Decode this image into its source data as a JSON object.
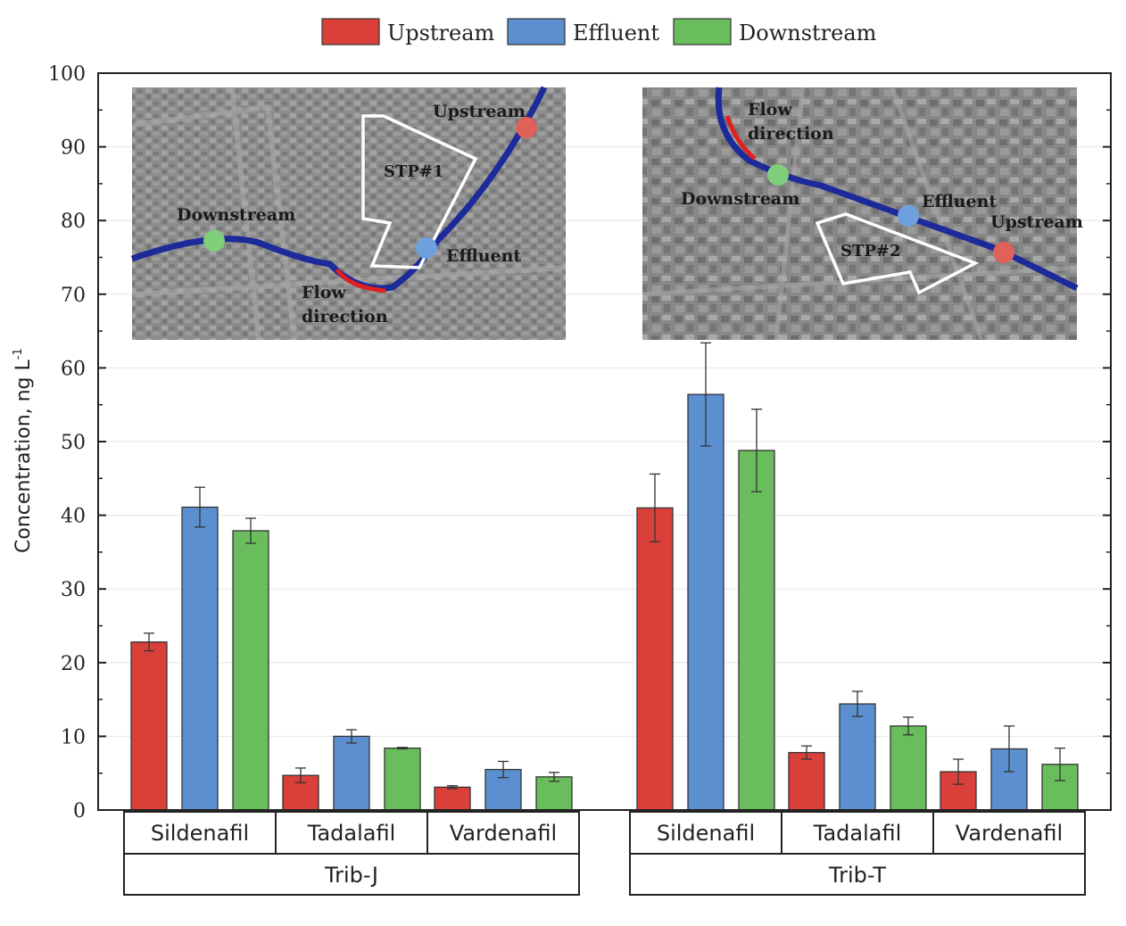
{
  "chart_data": {
    "type": "bar",
    "ylabel": "Concentration, ng L",
    "ylabel_sup": "-1",
    "ylim": [
      0,
      100
    ],
    "yticks": [
      0,
      10,
      20,
      30,
      40,
      50,
      60,
      70,
      80,
      90,
      100
    ],
    "legend": {
      "position": "top-center",
      "entries": [
        {
          "name": "Upstream",
          "color": "#d9403a"
        },
        {
          "name": "Effluent",
          "color": "#5b8fd0"
        },
        {
          "name": "Downstream",
          "color": "#69bd5c"
        }
      ]
    },
    "groups": [
      {
        "name": "Trib-J",
        "compounds": [
          "Sildenafil",
          "Tadalafil",
          "Vardenafil"
        ],
        "series": [
          {
            "name": "Upstream",
            "values": [
              22.8,
              4.7,
              3.1
            ],
            "errors": [
              1.2,
              1.0,
              0.2
            ]
          },
          {
            "name": "Effluent",
            "values": [
              41.1,
              10.0,
              5.5
            ],
            "errors": [
              2.7,
              0.9,
              1.1
            ]
          },
          {
            "name": "Downstream",
            "values": [
              37.9,
              8.4,
              4.5
            ],
            "errors": [
              1.7,
              0.1,
              0.6
            ]
          }
        ]
      },
      {
        "name": "Trib-T",
        "compounds": [
          "Sildenafil",
          "Tadalafil",
          "Vardenafil"
        ],
        "series": [
          {
            "name": "Upstream",
            "values": [
              41.0,
              7.8,
              5.2
            ],
            "errors": [
              4.6,
              0.9,
              1.7
            ]
          },
          {
            "name": "Effluent",
            "values": [
              56.4,
              14.4,
              8.3
            ],
            "errors": [
              7.0,
              1.7,
              3.1
            ]
          },
          {
            "name": "Downstream",
            "values": [
              48.8,
              11.4,
              6.2
            ],
            "errors": [
              5.6,
              1.2,
              2.2
            ]
          }
        ]
      }
    ]
  },
  "maps": [
    {
      "labels": {
        "upstream": "Upstream",
        "stp": "STP#1",
        "downstream": "Downstream",
        "effluent": "Effluent",
        "flow1": "Flow",
        "flow2": "direction"
      }
    },
    {
      "labels": {
        "flow1": "Flow",
        "flow2": "direction",
        "downstream": "Downstream",
        "effluent": "Effluent",
        "upstream": "Upstream",
        "stp": "STP#2"
      }
    }
  ],
  "colors": {
    "river": "#1c2a9a",
    "flow_arrow": "#e02020",
    "map_bg": "#8a8a8a",
    "axis": "#222222"
  }
}
